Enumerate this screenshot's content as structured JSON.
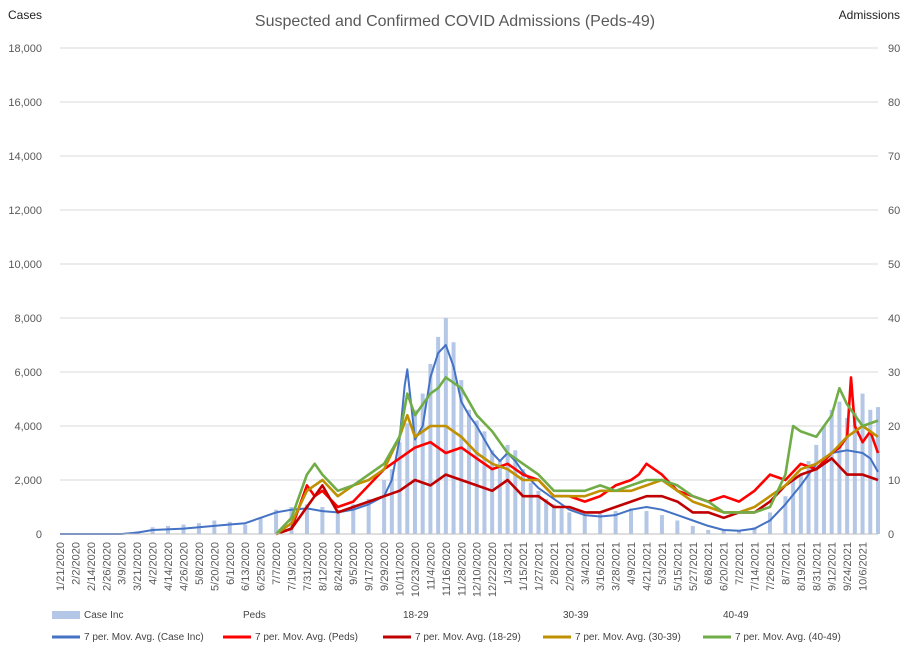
{
  "chart_data": {
    "type": "bar+line",
    "title": "Suspected and Confirmed COVID Admissions (Peds-49)",
    "ylabel_left": "Cases",
    "ylabel_right": "Admissions",
    "y_left_ticks": [
      "0",
      "2,000",
      "4,000",
      "6,000",
      "8,000",
      "10,000",
      "12,000",
      "14,000",
      "16,000",
      "18,000"
    ],
    "y_right_ticks": [
      "0",
      "10",
      "20",
      "30",
      "40",
      "50",
      "60",
      "70",
      "80",
      "90"
    ],
    "ylim_left": [
      0,
      18000
    ],
    "ylim_right": [
      0,
      90
    ],
    "grid": "horizontal",
    "legend_position": "bottom",
    "x_tick_labels": [
      "1/21/2020",
      "2/2/2020",
      "2/14/2020",
      "2/26/2020",
      "3/9/2020",
      "3/21/2020",
      "4/2/2020",
      "4/14/2020",
      "4/26/2020",
      "5/8/2020",
      "5/20/2020",
      "6/1/2020",
      "6/13/2020",
      "6/25/2020",
      "7/7/2020",
      "7/19/2020",
      "7/31/2020",
      "8/12/2020",
      "8/24/2020",
      "9/5/2020",
      "9/17/2020",
      "9/29/2020",
      "10/11/2020",
      "10/23/2020",
      "11/4/2020",
      "11/16/2020",
      "11/28/2020",
      "12/10/2020",
      "12/22/2020",
      "1/3/2021",
      "1/15/2021",
      "1/27/2021",
      "2/8/2021",
      "2/20/2021",
      "3/4/2021",
      "3/16/2021",
      "3/28/2021",
      "4/9/2021",
      "4/21/2021",
      "5/3/2021",
      "5/15/2021",
      "5/27/2021",
      "6/8/2021",
      "6/20/2021",
      "7/2/2021",
      "7/14/2021",
      "7/26/2021",
      "8/7/2021",
      "8/19/2021",
      "8/31/2021",
      "9/12/2021",
      "9/24/2021",
      "10/6/2021"
    ],
    "x_start": "1/21/2020",
    "x_end": "10/18/2021",
    "bar_series": {
      "name": "Case Inc",
      "axis": "left",
      "color": "#b4c7e7",
      "dates": [
        "3/21/2020",
        "4/2/2020",
        "4/14/2020",
        "4/26/2020",
        "5/8/2020",
        "5/20/2020",
        "6/1/2020",
        "6/13/2020",
        "6/25/2020",
        "7/7/2020",
        "7/19/2020",
        "7/31/2020",
        "8/12/2020",
        "8/24/2020",
        "9/5/2020",
        "9/17/2020",
        "9/29/2020",
        "10/5/2020",
        "10/11/2020",
        "10/17/2020",
        "10/23/2020",
        "10/29/2020",
        "11/4/2020",
        "11/10/2020",
        "11/16/2020",
        "11/22/2020",
        "11/28/2020",
        "12/4/2020",
        "12/10/2020",
        "12/16/2020",
        "12/22/2020",
        "12/28/2020",
        "1/3/2021",
        "1/9/2021",
        "1/15/2021",
        "1/21/2021",
        "1/27/2021",
        "2/2/2021",
        "2/8/2021",
        "2/14/2021",
        "2/20/2021",
        "3/4/2021",
        "3/16/2021",
        "3/28/2021",
        "4/9/2021",
        "4/21/2021",
        "5/3/2021",
        "5/15/2021",
        "5/27/2021",
        "6/8/2021",
        "6/20/2021",
        "7/2/2021",
        "7/14/2021",
        "7/26/2021",
        "8/7/2021",
        "8/13/2021",
        "8/19/2021",
        "8/25/2021",
        "8/31/2021",
        "9/6/2021",
        "9/12/2021",
        "9/18/2021",
        "9/24/2021",
        "9/30/2021",
        "10/6/2021",
        "10/12/2021",
        "10/18/2021"
      ],
      "values": [
        100,
        250,
        300,
        350,
        400,
        500,
        450,
        350,
        600,
        900,
        1000,
        1100,
        1000,
        900,
        1100,
        1300,
        2000,
        2400,
        3400,
        4100,
        4600,
        5200,
        6300,
        7300,
        8000,
        7100,
        5700,
        4600,
        4200,
        3800,
        3100,
        2700,
        3300,
        3100,
        2400,
        1900,
        1600,
        1300,
        1100,
        950,
        800,
        700,
        750,
        850,
        950,
        850,
        700,
        500,
        300,
        150,
        130,
        150,
        250,
        800,
        1400,
        2000,
        2200,
        2700,
        3300,
        4000,
        4600,
        4900,
        4300,
        4500,
        5200,
        4600,
        4700
      ]
    },
    "series": [
      {
        "name": "7 per. Mov. Avg. (Case Inc)",
        "axis": "left",
        "color": "#4472c4",
        "dates": [
          "1/21/2020",
          "3/9/2020",
          "3/21/2020",
          "4/2/2020",
          "4/26/2020",
          "5/20/2020",
          "6/1/2020",
          "6/13/2020",
          "6/25/2020",
          "7/7/2020",
          "7/19/2020",
          "7/31/2020",
          "8/12/2020",
          "8/24/2020",
          "9/5/2020",
          "9/17/2020",
          "9/29/2020",
          "10/5/2020",
          "10/11/2020",
          "10/15/2020",
          "10/17/2020",
          "10/23/2020",
          "10/29/2020",
          "11/4/2020",
          "11/10/2020",
          "11/16/2020",
          "11/22/2020",
          "11/28/2020",
          "12/4/2020",
          "12/10/2020",
          "12/16/2020",
          "12/22/2020",
          "12/28/2020",
          "1/3/2021",
          "1/9/2021",
          "1/15/2021",
          "1/21/2021",
          "1/27/2021",
          "2/8/2021",
          "2/20/2021",
          "3/4/2021",
          "3/16/2021",
          "3/28/2021",
          "4/9/2021",
          "4/21/2021",
          "5/3/2021",
          "5/15/2021",
          "5/27/2021",
          "6/8/2021",
          "6/20/2021",
          "7/2/2021",
          "7/14/2021",
          "7/26/2021",
          "8/7/2021",
          "8/19/2021",
          "8/31/2021",
          "9/12/2021",
          "9/24/2021",
          "10/6/2021",
          "10/12/2021",
          "10/18/2021"
        ],
        "values": [
          0,
          0,
          50,
          150,
          200,
          300,
          350,
          400,
          600,
          800,
          900,
          950,
          850,
          800,
          900,
          1100,
          1400,
          2000,
          3500,
          5500,
          6100,
          3500,
          4000,
          5800,
          6700,
          7000,
          6200,
          4900,
          4400,
          4000,
          3500,
          3000,
          2700,
          3000,
          2700,
          2300,
          2000,
          1700,
          1300,
          900,
          700,
          650,
          700,
          900,
          1000,
          900,
          700,
          500,
          300,
          150,
          120,
          200,
          500,
          1100,
          1800,
          2600,
          3000,
          3100,
          3000,
          2800,
          2300
        ]
      },
      {
        "name": "7 per. Mov. Avg. (Peds)",
        "axis": "right",
        "color": "#ff0000",
        "dates": [
          "7/7/2020",
          "7/19/2020",
          "7/25/2020",
          "7/31/2020",
          "8/6/2020",
          "8/12/2020",
          "8/24/2020",
          "9/5/2020",
          "9/17/2020",
          "9/29/2020",
          "10/11/2020",
          "10/23/2020",
          "11/4/2020",
          "11/16/2020",
          "11/28/2020",
          "12/10/2020",
          "12/22/2020",
          "1/3/2021",
          "1/15/2021",
          "1/27/2021",
          "2/8/2021",
          "2/20/2021",
          "3/4/2021",
          "3/16/2021",
          "3/28/2021",
          "4/9/2021",
          "4/15/2021",
          "4/21/2021",
          "4/27/2021",
          "5/3/2021",
          "5/15/2021",
          "5/27/2021",
          "6/8/2021",
          "6/20/2021",
          "7/2/2021",
          "7/14/2021",
          "7/26/2021",
          "8/7/2021",
          "8/19/2021",
          "8/31/2021",
          "9/12/2021",
          "9/18/2021",
          "9/24/2021",
          "9/27/2021",
          "9/30/2021",
          "10/6/2021",
          "10/12/2021",
          "10/18/2021"
        ],
        "values": [
          0,
          1,
          5,
          9,
          7,
          8,
          5,
          6,
          9,
          12,
          14,
          16,
          17,
          15,
          16,
          14,
          12,
          13,
          11,
          10,
          7,
          7,
          6,
          7,
          9,
          10,
          11,
          13,
          12,
          11,
          8,
          7,
          6,
          7,
          6,
          8,
          11,
          10,
          13,
          12,
          15,
          16,
          18,
          29,
          20,
          17,
          19,
          15
        ]
      },
      {
        "name": "7 per. Mov. Avg. (18-29)",
        "axis": "right",
        "color": "#c00000",
        "dates": [
          "7/7/2020",
          "7/19/2020",
          "7/31/2020",
          "8/12/2020",
          "8/24/2020",
          "9/5/2020",
          "9/17/2020",
          "9/29/2020",
          "10/11/2020",
          "10/23/2020",
          "11/4/2020",
          "11/16/2020",
          "11/28/2020",
          "12/10/2020",
          "12/22/2020",
          "1/3/2021",
          "1/15/2021",
          "1/27/2021",
          "2/8/2021",
          "2/20/2021",
          "3/4/2021",
          "3/16/2021",
          "3/28/2021",
          "4/9/2021",
          "4/21/2021",
          "5/3/2021",
          "5/15/2021",
          "5/27/2021",
          "6/8/2021",
          "6/20/2021",
          "7/2/2021",
          "7/14/2021",
          "7/26/2021",
          "8/7/2021",
          "8/19/2021",
          "8/31/2021",
          "9/12/2021",
          "9/24/2021",
          "10/6/2021",
          "10/18/2021"
        ],
        "values": [
          0,
          1,
          5,
          9,
          4,
          5,
          6,
          7,
          8,
          10,
          9,
          11,
          10,
          9,
          8,
          10,
          7,
          7,
          5,
          5,
          4,
          4,
          5,
          6,
          7,
          7,
          6,
          4,
          4,
          3,
          4,
          4,
          6,
          9,
          11,
          12,
          14,
          11,
          11,
          10
        ]
      },
      {
        "name": "7 per. Mov. Avg. (30-39)",
        "axis": "right",
        "color": "#bf9000",
        "dates": [
          "7/7/2020",
          "7/19/2020",
          "7/31/2020",
          "8/12/2020",
          "8/24/2020",
          "9/5/2020",
          "9/17/2020",
          "9/29/2020",
          "10/11/2020",
          "10/17/2020",
          "10/23/2020",
          "11/4/2020",
          "11/16/2020",
          "11/28/2020",
          "12/10/2020",
          "12/22/2020",
          "1/3/2021",
          "1/15/2021",
          "1/27/2021",
          "2/8/2021",
          "2/20/2021",
          "3/4/2021",
          "3/16/2021",
          "3/28/2021",
          "4/9/2021",
          "4/21/2021",
          "5/3/2021",
          "5/15/2021",
          "5/27/2021",
          "6/8/2021",
          "6/20/2021",
          "7/2/2021",
          "7/14/2021",
          "7/26/2021",
          "8/7/2021",
          "8/19/2021",
          "8/31/2021",
          "9/12/2021",
          "9/24/2021",
          "10/6/2021",
          "10/18/2021"
        ],
        "values": [
          0,
          2,
          8,
          10,
          7,
          9,
          10,
          12,
          18,
          22,
          18,
          20,
          20,
          18,
          15,
          13,
          12,
          10,
          10,
          7,
          7,
          7,
          8,
          8,
          8,
          9,
          10,
          8,
          6,
          5,
          4,
          4,
          5,
          7,
          9,
          12,
          13,
          15,
          18,
          20,
          18
        ]
      },
      {
        "name": "7 per. Mov. Avg. (40-49)",
        "axis": "right",
        "color": "#70ad47",
        "dates": [
          "7/7/2020",
          "7/19/2020",
          "7/31/2020",
          "8/6/2020",
          "8/12/2020",
          "8/24/2020",
          "9/5/2020",
          "9/17/2020",
          "9/29/2020",
          "10/11/2020",
          "10/17/2020",
          "10/23/2020",
          "11/4/2020",
          "11/10/2020",
          "11/16/2020",
          "11/22/2020",
          "11/28/2020",
          "12/10/2020",
          "12/22/2020",
          "1/3/2021",
          "1/15/2021",
          "1/27/2021",
          "2/8/2021",
          "2/20/2021",
          "3/4/2021",
          "3/16/2021",
          "3/28/2021",
          "4/9/2021",
          "4/21/2021",
          "5/3/2021",
          "5/15/2021",
          "5/27/2021",
          "6/8/2021",
          "6/20/2021",
          "7/2/2021",
          "7/14/2021",
          "7/26/2021",
          "8/7/2021",
          "8/13/2021",
          "8/19/2021",
          "8/31/2021",
          "9/12/2021",
          "9/18/2021",
          "9/24/2021",
          "10/6/2021",
          "10/18/2021"
        ],
        "values": [
          0,
          3,
          11,
          13,
          11,
          8,
          9,
          11,
          13,
          18,
          26,
          22,
          26,
          27,
          29,
          28,
          27,
          22,
          19,
          15,
          13,
          11,
          8,
          8,
          8,
          9,
          8,
          9,
          10,
          10,
          9,
          7,
          6,
          4,
          4,
          4,
          5,
          11,
          20,
          19,
          18,
          22,
          27,
          24,
          20,
          21
        ]
      }
    ],
    "legend": [
      "Case Inc",
      "Peds",
      "18-29",
      "30-39",
      "40-49",
      "7 per. Mov. Avg. (Case Inc)",
      "7 per. Mov. Avg. (Peds)",
      "7 per. Mov. Avg. (18-29)",
      "7 per. Mov. Avg. (30-39)",
      "7 per. Mov. Avg. (40-49)"
    ]
  }
}
